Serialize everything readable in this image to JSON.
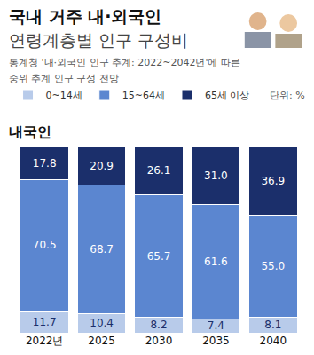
{
  "chart_data": {
    "type": "bar",
    "title": "국내 거주 내·외국인",
    "subtitle": "연령계층별 인구 구성비",
    "annotations": [
      "통계청 '내·외국인 인구 추계: 2022~2042년'에 따른",
      "중위 추계 인구 구성 전망",
      "단위: %",
      "내국인"
    ],
    "categories": [
      "2022년",
      "2025",
      "2030",
      "2035",
      "2040"
    ],
    "series": [
      {
        "name": "0~14세",
        "color": "#b8cbea",
        "values": [
          11.7,
          10.4,
          8.2,
          7.4,
          8.1
        ]
      },
      {
        "name": "15~64세",
        "color": "#5b86d0",
        "values": [
          70.5,
          68.7,
          65.7,
          61.6,
          55.0
        ]
      },
      {
        "name": "65세 이상",
        "color": "#1b2f6b",
        "values": [
          17.8,
          20.9,
          26.1,
          31.0,
          36.9
        ]
      }
    ],
    "ylim": [
      0,
      100
    ],
    "stacked": true,
    "data_labels": true,
    "legend": "top-left",
    "tick_labels": "x",
    "grid": false
  }
}
